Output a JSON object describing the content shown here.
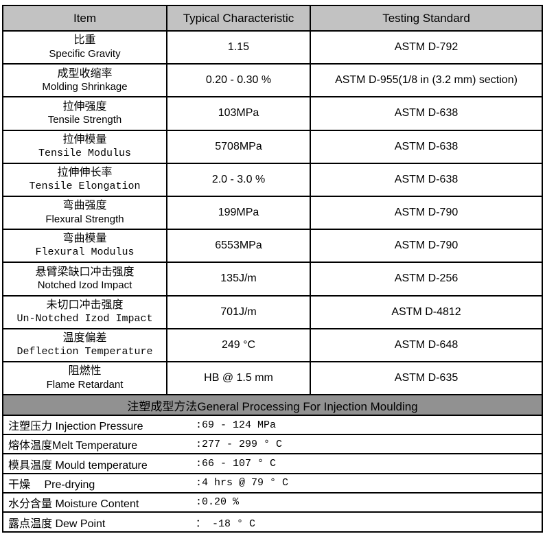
{
  "colors": {
    "header_bg": "#c2c2c2",
    "section_bg": "#919191",
    "border": "#000000"
  },
  "header": {
    "cols": [
      "Item",
      "Typical Characteristic",
      "Testing Standard"
    ]
  },
  "rows": [
    {
      "cn": "比重",
      "en": "Specific Gravity",
      "value": "1.15",
      "standard": "ASTM D-792"
    },
    {
      "cn": "成型收缩率",
      "en": "Molding Shrinkage",
      "value": "0.20 - 0.30 %",
      "standard": "ASTM D-955(1/8 in (3.2 mm) section)"
    },
    {
      "cn": "拉伸强度",
      "en": "Tensile Strength",
      "value": "103MPa",
      "standard": "ASTM D-638"
    },
    {
      "cn": "拉伸模量",
      "en": "Tensile Modulus",
      "value": "5708MPa",
      "standard": "ASTM D-638"
    },
    {
      "cn": "拉伸伸长率",
      "en": "Tensile Elongation",
      "value": "2.0 - 3.0 %",
      "standard": "ASTM D-638"
    },
    {
      "cn": "弯曲强度",
      "en": "Flexural Strength",
      "value": "199MPa",
      "standard": "ASTM D-790"
    },
    {
      "cn": "弯曲模量",
      "en": "Flexural Modulus",
      "value": "6553MPa",
      "standard": "ASTM D-790"
    },
    {
      "cn": "悬臂梁缺口冲击强度",
      "en": "Notched Izod Impact",
      "value": "135J/m",
      "standard": "ASTM D-256"
    },
    {
      "cn": "未切口冲击强度",
      "en": "Un-Notched Izod Impact",
      "value": "701J/m",
      "standard": "ASTM D-4812"
    },
    {
      "cn": "温度偏差",
      "en": "Deflection Temperature",
      "value": "249 °C",
      "standard": "ASTM D-648"
    },
    {
      "cn": "阻燃性",
      "en": "Flame Retardant",
      "value": "HB @ 1.5 mm",
      "standard": "ASTM D-635"
    }
  ],
  "section": {
    "title": "注塑成型方法General Processing For Injection Moulding"
  },
  "processing": [
    {
      "label": "注塑压力 Injection Pressure",
      "value": ":69 - 124 MPa"
    },
    {
      "label": "熔体温度Melt Temperature",
      "value": ":277 - 299 ° C"
    },
    {
      "label": "模具温度 Mould temperature",
      "value": ":66 - 107 ° C"
    },
    {
      "label": "干燥　 Pre-drying",
      "value": ":4 hrs @ 79 ° C"
    },
    {
      "label": "水分含量 Moisture Content",
      "value": ":0.20 %"
    },
    {
      "label": "露点温度 Dew Point",
      "value": "： -18 ° C"
    }
  ]
}
